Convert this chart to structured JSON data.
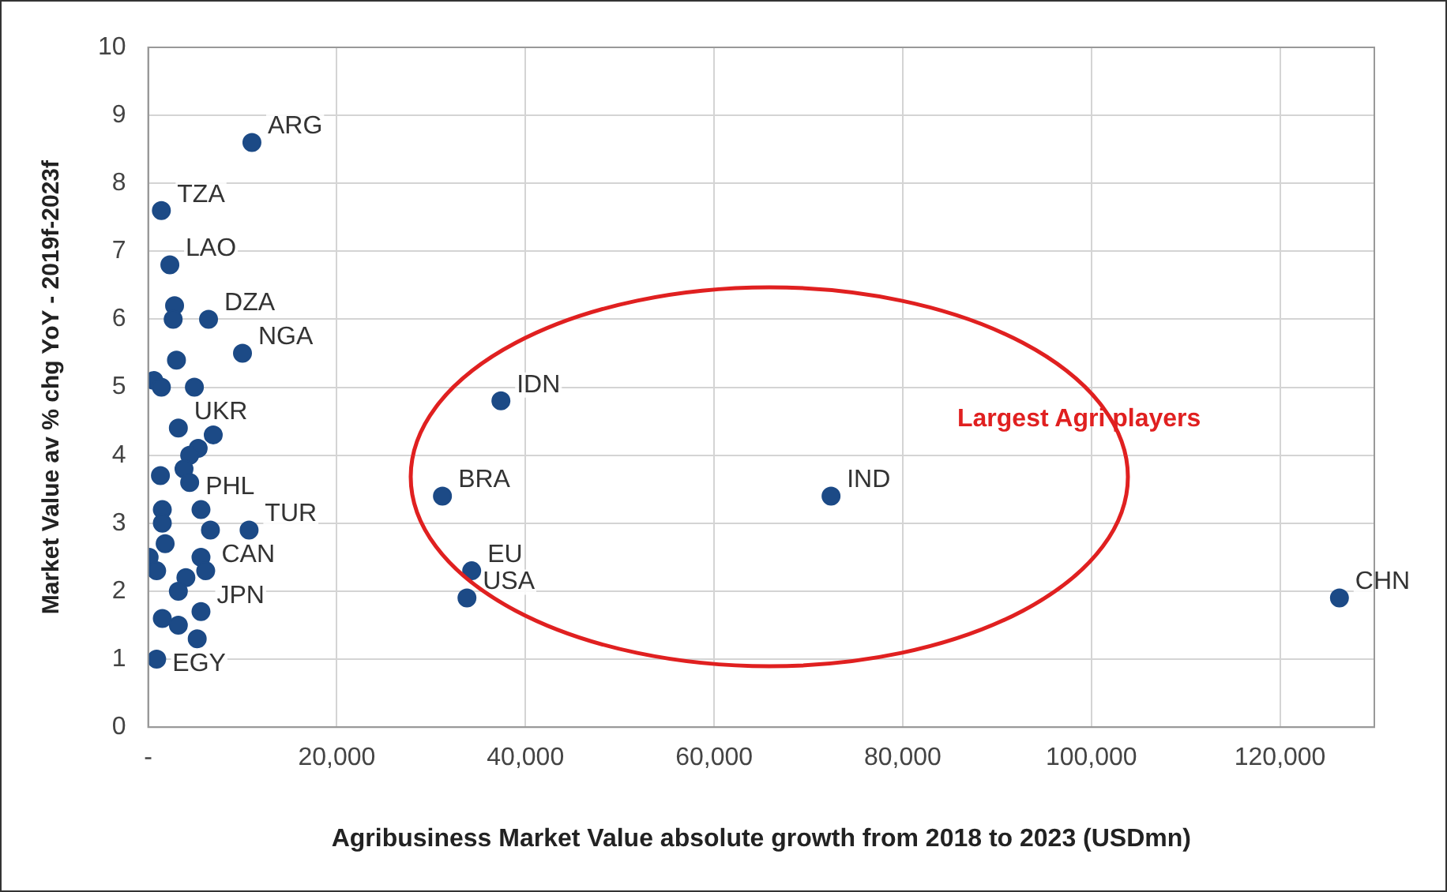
{
  "chart_data": {
    "type": "scatter",
    "xlabel": "Agribusiness Market Value absolute growth from 2018 to 2023 (USDmn)",
    "ylabel": "Market Value av % chg YoY - 2019f-2023f",
    "xlim": [
      0,
      130000
    ],
    "ylim": [
      0,
      10
    ],
    "xticks": [
      {
        "value": 0,
        "label": "-"
      },
      {
        "value": 20000,
        "label": "20,000"
      },
      {
        "value": 40000,
        "label": "40,000"
      },
      {
        "value": 60000,
        "label": "60,000"
      },
      {
        "value": 80000,
        "label": "80,000"
      },
      {
        "value": 100000,
        "label": "100,000"
      },
      {
        "value": 120000,
        "label": "120,000"
      }
    ],
    "yticks": [
      0,
      1,
      2,
      3,
      4,
      5,
      6,
      7,
      8,
      9,
      10
    ],
    "grid": true,
    "legend": false,
    "marker": "circle",
    "series": [
      {
        "color": "#1c4a86",
        "x": [
          11000,
          1400,
          2300,
          2800,
          2650,
          6400,
          10000,
          3000,
          600,
          1400,
          4900,
          3200,
          6900,
          5300,
          4400,
          3800,
          4400,
          1300,
          1500,
          5600,
          6600,
          10700,
          1500,
          1800,
          100,
          900,
          5600,
          6100,
          4000,
          3200,
          1500,
          3200,
          5600,
          5200,
          900,
          37400,
          31200,
          72400,
          34300,
          33800,
          126300
        ],
        "values": [
          8.6,
          7.6,
          6.8,
          6.2,
          6.0,
          6.0,
          5.5,
          5.4,
          5.1,
          5.0,
          5.0,
          4.4,
          4.3,
          4.1,
          4.0,
          3.8,
          3.6,
          3.7,
          3.2,
          3.2,
          2.9,
          2.9,
          3.0,
          2.7,
          2.5,
          2.3,
          2.5,
          2.3,
          2.2,
          2.0,
          1.6,
          1.5,
          1.7,
          1.3,
          1.0,
          4.8,
          3.4,
          3.4,
          2.3,
          1.9,
          1.9
        ]
      }
    ],
    "annotations": [
      {
        "text": "ARG",
        "x": 11000,
        "y": 8.6
      },
      {
        "text": "TZA",
        "x": 1400,
        "y": 7.6
      },
      {
        "text": "LAO",
        "x": 2300,
        "y": 6.8
      },
      {
        "text": "DZA",
        "x": 6400,
        "y": 6.0
      },
      {
        "text": "NGA",
        "x": 10000,
        "y": 5.5
      },
      {
        "text": "UKR",
        "x": 3200,
        "y": 4.4
      },
      {
        "text": "PHL",
        "x": 4400,
        "y": 3.6
      },
      {
        "text": "TUR",
        "x": 10700,
        "y": 2.9
      },
      {
        "text": "CAN",
        "x": 6100,
        "y": 2.3
      },
      {
        "text": "JPN",
        "x": 5600,
        "y": 1.7
      },
      {
        "text": "EGY",
        "x": 900,
        "y": 1.0
      },
      {
        "text": "IDN",
        "x": 37400,
        "y": 4.8
      },
      {
        "text": "BRA",
        "x": 31200,
        "y": 3.4
      },
      {
        "text": "IND",
        "x": 72400,
        "y": 3.4
      },
      {
        "text": "EU",
        "x": 34300,
        "y": 2.3
      },
      {
        "text": "USA",
        "x": 33800,
        "y": 1.9
      },
      {
        "text": "CHN",
        "x": 126300,
        "y": 1.9
      },
      "Largest Agri players"
    ]
  }
}
